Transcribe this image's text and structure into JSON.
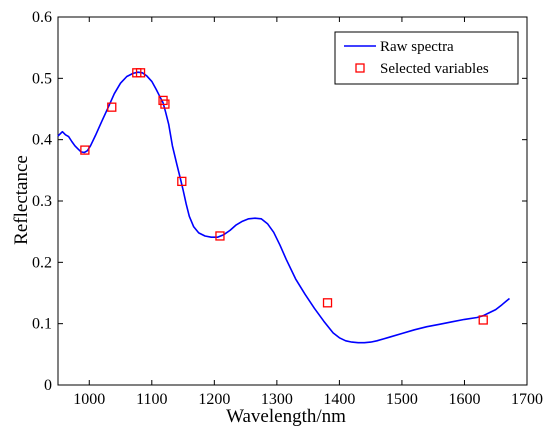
{
  "chart_data": {
    "type": "line",
    "title": "",
    "xlabel": "Wavelength/nm",
    "ylabel": "Reflectance",
    "xlim": [
      950,
      1700
    ],
    "ylim": [
      0,
      0.6
    ],
    "xticks": [
      1000,
      1100,
      1200,
      1300,
      1400,
      1500,
      1600,
      1700
    ],
    "yticks": [
      0,
      0.1,
      0.2,
      0.3,
      0.4,
      0.5,
      0.6
    ],
    "grid": false,
    "legend_position": "top-right",
    "colors": {
      "line": "#0000ff",
      "marker": "#ff0000"
    },
    "series": [
      {
        "name": "Raw spectra",
        "style": "line",
        "x": [
          950,
          957,
          962,
          967,
          972,
          977,
          982,
          987,
          992,
          997,
          1002,
          1010,
          1020,
          1030,
          1040,
          1050,
          1060,
          1070,
          1078,
          1085,
          1092,
          1100,
          1107,
          1113,
          1118,
          1122,
          1127,
          1133,
          1140,
          1146,
          1150,
          1155,
          1160,
          1167,
          1175,
          1185,
          1195,
          1205,
          1215,
          1225,
          1235,
          1245,
          1255,
          1265,
          1275,
          1285,
          1295,
          1305,
          1315,
          1330,
          1345,
          1360,
          1375,
          1390,
          1400,
          1410,
          1420,
          1430,
          1440,
          1450,
          1460,
          1470,
          1480,
          1500,
          1520,
          1540,
          1560,
          1580,
          1600,
          1620,
          1630,
          1640,
          1650,
          1660,
          1667,
          1672
        ],
        "y": [
          0.406,
          0.413,
          0.408,
          0.405,
          0.397,
          0.39,
          0.385,
          0.38,
          0.379,
          0.382,
          0.39,
          0.407,
          0.43,
          0.452,
          0.475,
          0.492,
          0.503,
          0.508,
          0.51,
          0.509,
          0.504,
          0.495,
          0.482,
          0.47,
          0.46,
          0.445,
          0.425,
          0.39,
          0.36,
          0.335,
          0.318,
          0.295,
          0.275,
          0.258,
          0.248,
          0.243,
          0.241,
          0.241,
          0.245,
          0.252,
          0.261,
          0.267,
          0.271,
          0.272,
          0.271,
          0.263,
          0.249,
          0.228,
          0.205,
          0.173,
          0.148,
          0.125,
          0.104,
          0.085,
          0.077,
          0.072,
          0.07,
          0.069,
          0.069,
          0.07,
          0.072,
          0.075,
          0.078,
          0.084,
          0.09,
          0.095,
          0.099,
          0.103,
          0.107,
          0.11,
          0.113,
          0.118,
          0.123,
          0.131,
          0.137,
          0.141
        ]
      },
      {
        "name": "Selected variables",
        "style": "markers",
        "x": [
          993,
          1036,
          1076,
          1082,
          1118,
          1121,
          1148,
          1209,
          1381,
          1630
        ],
        "y": [
          0.383,
          0.453,
          0.509,
          0.509,
          0.464,
          0.458,
          0.332,
          0.243,
          0.134,
          0.106
        ]
      }
    ]
  }
}
